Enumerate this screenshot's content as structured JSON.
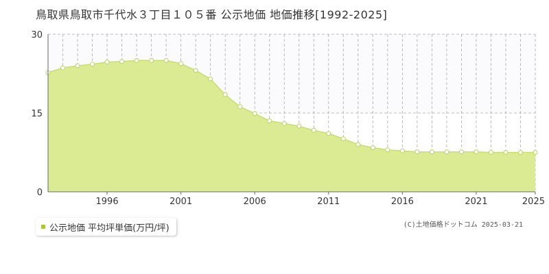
{
  "title": "鳥取県鳥取市千代水３丁目１０５番 公示地価 地価推移[1992-2025]",
  "legend": {
    "label": "公示地価 平均坪単価(万円/坪)"
  },
  "credit": "(C)土地価格ドットコム 2025-03-21",
  "colors": {
    "fill": "#dbeb94",
    "line": "#c8df6a",
    "marker_fill": "#ffffff",
    "marker_stroke": "#b9d35a",
    "legend": "#a8cc2a",
    "grid": "#aaaaaa",
    "axis": "#666666",
    "upper_band": "#fbfafd"
  },
  "chart_data": {
    "type": "area",
    "x": [
      1992,
      1993,
      1994,
      1995,
      1996,
      1997,
      1998,
      1999,
      2000,
      2001,
      2002,
      2003,
      2004,
      2005,
      2006,
      2007,
      2008,
      2009,
      2010,
      2011,
      2012,
      2013,
      2014,
      2015,
      2016,
      2017,
      2018,
      2019,
      2020,
      2021,
      2022,
      2023,
      2024,
      2025
    ],
    "series": [
      {
        "name": "公示地価 平均坪単価(万円/坪)",
        "values": [
          22.7,
          23.6,
          24.0,
          24.3,
          24.7,
          24.8,
          25.0,
          25.0,
          25.0,
          24.4,
          23.1,
          21.5,
          18.5,
          16.2,
          14.9,
          13.5,
          13.0,
          12.5,
          11.7,
          11.1,
          10.1,
          9.0,
          8.4,
          8.0,
          7.8,
          7.6,
          7.6,
          7.6,
          7.6,
          7.6,
          7.5,
          7.5,
          7.5,
          7.5
        ]
      }
    ],
    "xticks": [
      "1996",
      "2001",
      "2006",
      "2011",
      "2016",
      "2021",
      "2025"
    ],
    "yticks": [
      "0",
      "15",
      "30"
    ],
    "ylim": [
      0,
      30
    ],
    "xlim": [
      1992,
      2025
    ],
    "grid": true
  }
}
